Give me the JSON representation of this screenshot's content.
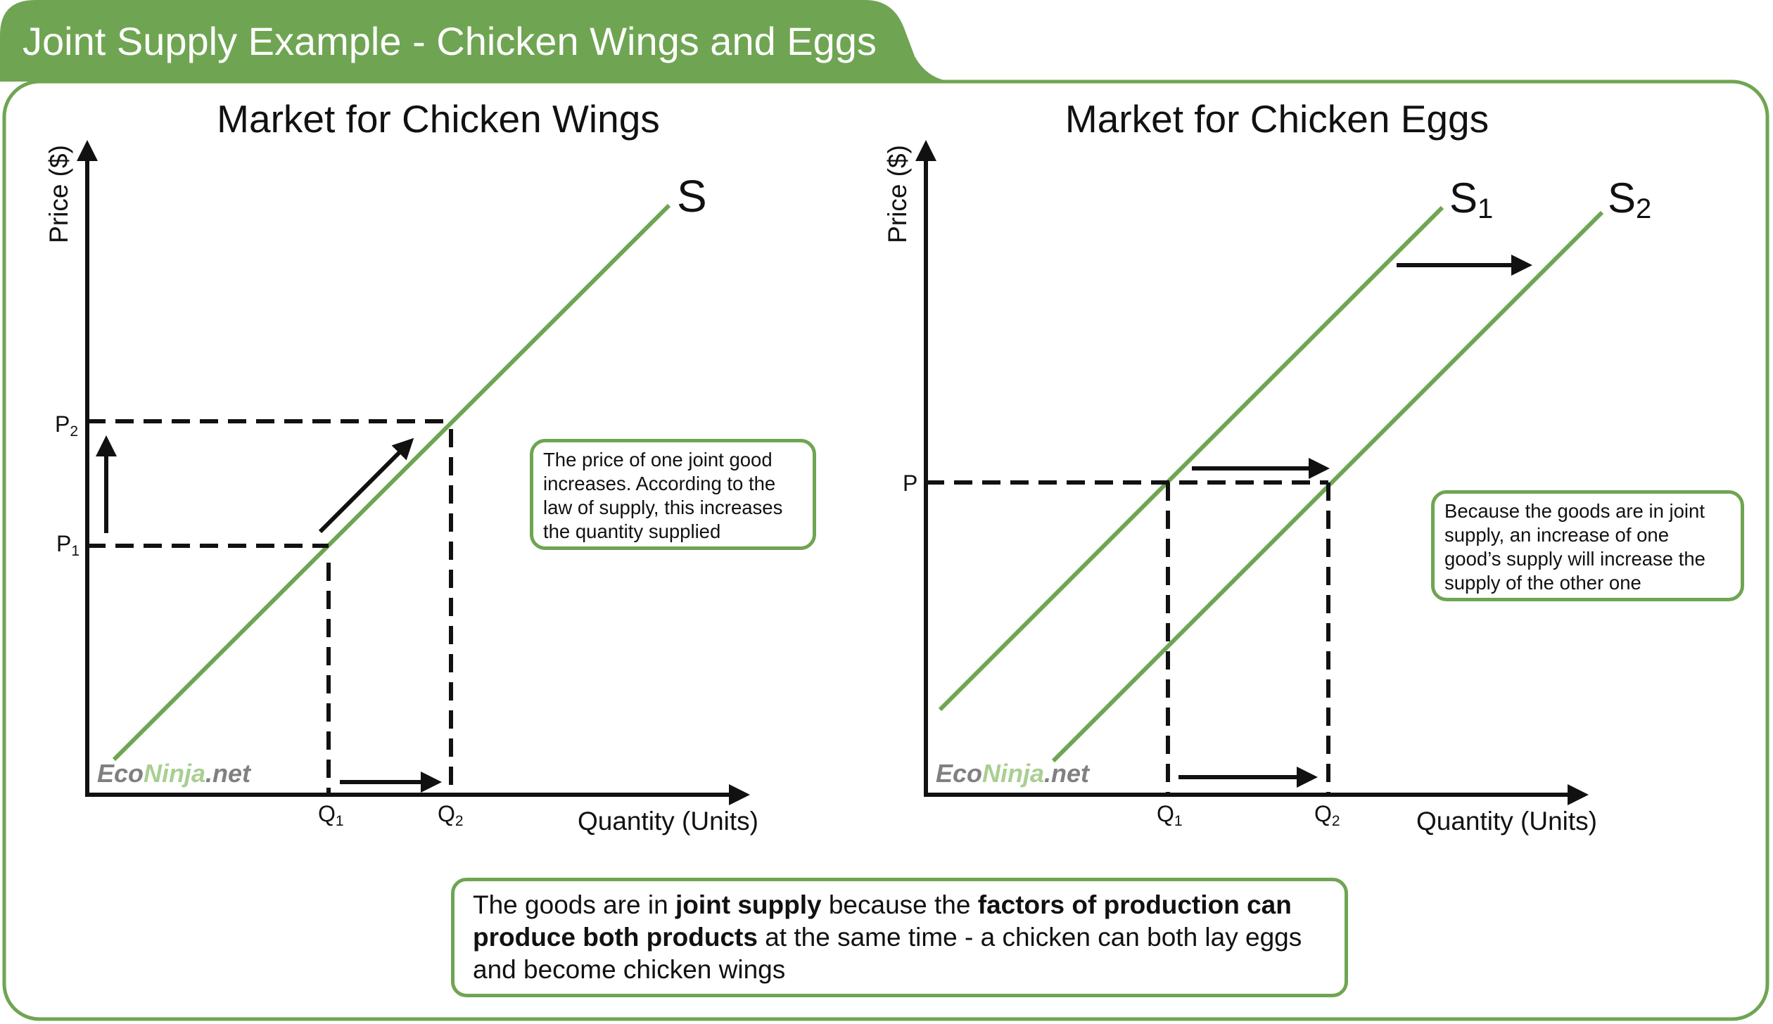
{
  "header": {
    "title": "Joint Supply Example - Chicken Wings and Eggs"
  },
  "colors": {
    "accent": "#6fa552",
    "watermark_green": "#a9cf92",
    "watermark_gray": "#808080",
    "ink": "#111111"
  },
  "watermark": {
    "part1": "Eco",
    "part2": "Ninja",
    "part3": ".net"
  },
  "left_chart": {
    "title": "Market for Chicken Wings",
    "ylabel": "Price ($)",
    "xlabel": "Quantity (Units)",
    "curve_label": "S",
    "price_labels": [
      "P",
      "P"
    ],
    "price_subs": [
      "2",
      "1"
    ],
    "qty_labels": [
      "Q",
      "Q"
    ],
    "qty_subs": [
      "1",
      "2"
    ]
  },
  "right_chart": {
    "title": "Market for Chicken Eggs",
    "ylabel": "Price ($)",
    "xlabel": "Quantity (Units)",
    "curve_labels": [
      "S",
      "S"
    ],
    "curve_subs": [
      "1",
      "2"
    ],
    "price_label": "P",
    "qty_labels": [
      "Q",
      "Q"
    ],
    "qty_subs": [
      "1",
      "2"
    ]
  },
  "notes": {
    "left": "The price of one joint good increases. According to the law of supply, this increases the quantity supplied",
    "right": "Because the goods are in joint supply, an increase of one good’s supply will increase the supply of the other one",
    "bottom": {
      "t1": "The goods are in ",
      "b1": "joint supply",
      "t2": " because the ",
      "b2": "factors of production can produce both products",
      "t3": " at the same time - a chicken can both lay eggs and become chicken wings"
    }
  },
  "chart_data": [
    {
      "type": "line",
      "title": "Market for Chicken Wings",
      "xlabel": "Quantity (Units)",
      "ylabel": "Price ($)",
      "series": [
        {
          "name": "S",
          "points": "upward-sloping supply curve"
        }
      ],
      "annotations": [
        "P1",
        "P2",
        "Q1",
        "Q2"
      ],
      "movement": "price rises from P1 to P2, quantity supplied rises from Q1 to Q2 along S"
    },
    {
      "type": "line",
      "title": "Market for Chicken Eggs",
      "xlabel": "Quantity (Units)",
      "ylabel": "Price ($)",
      "series": [
        {
          "name": "S1"
        },
        {
          "name": "S2"
        }
      ],
      "annotations": [
        "P",
        "Q1",
        "Q2"
      ],
      "movement": "supply shifts right from S1 to S2; at price P quantity rises from Q1 to Q2"
    }
  ]
}
